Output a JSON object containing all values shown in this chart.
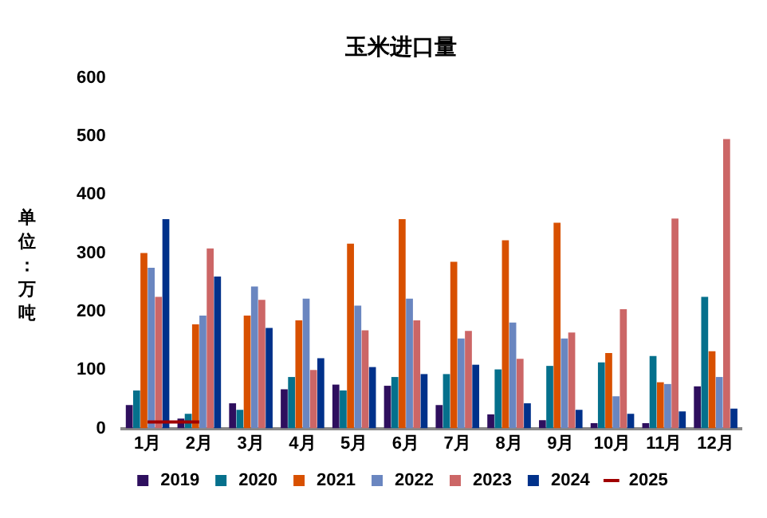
{
  "chart_data": {
    "type": "bar",
    "title": "玉米进口量",
    "ylabel": "单位：万吨",
    "categories": [
      "1月",
      "2月",
      "3月",
      "4月",
      "5月",
      "6月",
      "7月",
      "8月",
      "9月",
      "10月",
      "11月",
      "12月"
    ],
    "series": [
      {
        "name": "2019",
        "color": "#2e0f5e",
        "values": [
          40,
          17,
          43,
          67,
          75,
          73,
          40,
          24,
          14,
          9,
          9,
          72
        ]
      },
      {
        "name": "2020",
        "color": "#05708c",
        "values": [
          65,
          25,
          32,
          88,
          65,
          88,
          93,
          101,
          107,
          113,
          124,
          225
        ]
      },
      {
        "name": "2021",
        "color": "#d85000",
        "values": [
          300,
          178,
          193,
          185,
          316,
          358,
          285,
          322,
          352,
          129,
          79,
          132
        ]
      },
      {
        "name": "2022",
        "color": "#6a86c0",
        "values": [
          275,
          193,
          243,
          222,
          210,
          222,
          154,
          181,
          154,
          55,
          76,
          88
        ]
      },
      {
        "name": "2023",
        "color": "#cc6666",
        "values": [
          225,
          308,
          220,
          100,
          168,
          185,
          167,
          119,
          164,
          204,
          359,
          495
        ]
      },
      {
        "name": "2024",
        "color": "#00318a",
        "values": [
          358,
          260,
          172,
          120,
          105,
          93,
          109,
          43,
          32,
          25,
          29,
          34
        ]
      },
      {
        "name": "2025",
        "type": "line",
        "color": "#a00000",
        "values": [
          11,
          11,
          null,
          null,
          null,
          null,
          null,
          null,
          null,
          null,
          null,
          null
        ]
      }
    ],
    "ylim": [
      0,
      600
    ],
    "yticks": [
      0,
      100,
      200,
      300,
      400,
      500,
      600
    ],
    "grid": false,
    "legend": "bottom"
  }
}
